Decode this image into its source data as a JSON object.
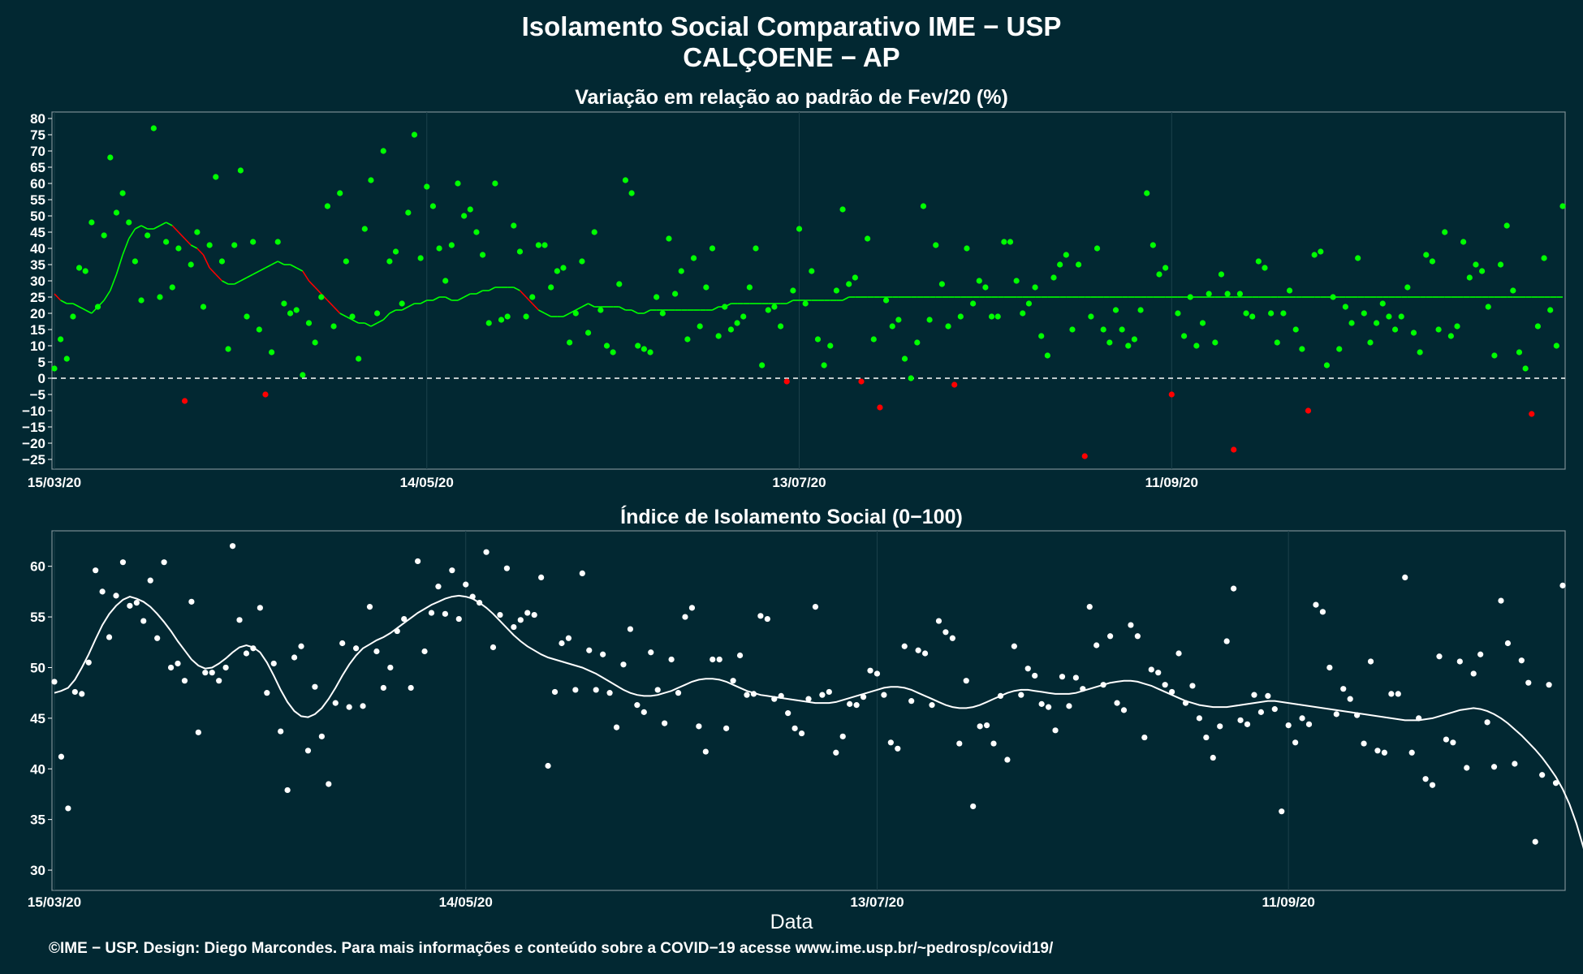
{
  "title": "Isolamento Social Comparativo IME − USP",
  "subtitle": "CALÇOENE − AP",
  "xlabel": "Data",
  "footer": "©IME − USP. Design: Diego Marcondes. Para mais informações e conteúdo sobre a COVID−19 acesse www.ime.usp.br/~pedrosp/covid19/",
  "colors": {
    "background": "#022832",
    "positive": "#00ff00",
    "negative": "#ff0000",
    "index": "#ffffff"
  },
  "chart_data": [
    {
      "type": "scatter",
      "title": "Variação em relação ao padrão de Fev/20 (%)",
      "x_start": "15/03/20",
      "x_ticks": [
        "15/03/20",
        "14/05/20",
        "13/07/20",
        "11/09/20"
      ],
      "tick_day_index": [
        0,
        60,
        120,
        180
      ],
      "ylim": [
        -28,
        82
      ],
      "yticks": [
        -25,
        -20,
        -15,
        -10,
        -5,
        0,
        5,
        10,
        15,
        20,
        25,
        30,
        35,
        40,
        45,
        50,
        55,
        60,
        65,
        70,
        75,
        80
      ],
      "reference_line": 0,
      "points": [
        3,
        12,
        6,
        19,
        34,
        33,
        48,
        22,
        44,
        68,
        51,
        57,
        48,
        36,
        24,
        44,
        77,
        25,
        42,
        28,
        40,
        -7,
        35,
        45,
        22,
        41,
        62,
        36,
        9,
        41,
        64,
        19,
        42,
        15,
        -5,
        8,
        42,
        23,
        20,
        21,
        1,
        17,
        11,
        25,
        53,
        16,
        57,
        36,
        19,
        6,
        46,
        61,
        20,
        70,
        36,
        39,
        23,
        51,
        75,
        37,
        59,
        53,
        40,
        30,
        41,
        60,
        50,
        52,
        45,
        38,
        17,
        60,
        18,
        19,
        47,
        39,
        19,
        25,
        41,
        41,
        28,
        33,
        34,
        11,
        20,
        36,
        14,
        45,
        21,
        10,
        8,
        29,
        61,
        57,
        10,
        9,
        8,
        25,
        20,
        43,
        26,
        33,
        12,
        37,
        16,
        28,
        40,
        13,
        22,
        15,
        17,
        19,
        28,
        40,
        4,
        21,
        22,
        16,
        -1,
        27,
        46,
        23,
        33,
        12,
        4,
        10,
        27,
        52,
        29,
        31,
        -1,
        43,
        12,
        -9,
        24,
        16,
        18,
        6,
        0,
        11,
        53,
        18,
        41,
        29,
        16,
        -2,
        19,
        40,
        23,
        30,
        28,
        19,
        19,
        42,
        42,
        30,
        20,
        23,
        28,
        13,
        7,
        31,
        35,
        38,
        15,
        35,
        -24,
        19,
        40,
        15,
        11,
        21,
        15,
        10,
        12,
        21,
        57,
        41,
        32,
        34,
        -5,
        20,
        13,
        25,
        10,
        17,
        26,
        11,
        32,
        26,
        -22,
        26,
        20,
        19,
        36,
        34,
        20,
        11,
        20,
        27,
        15,
        9,
        -10,
        38,
        39,
        4,
        25,
        9,
        22,
        17,
        37,
        20,
        11,
        17,
        23,
        19,
        15,
        19,
        28,
        14,
        8,
        38,
        36,
        15,
        45,
        13,
        16,
        42,
        31,
        35,
        33,
        22,
        7,
        35,
        47,
        27,
        8,
        3,
        -11,
        16,
        37,
        21,
        10,
        53
      ],
      "moving_average": [
        26,
        24,
        23,
        23,
        22,
        21,
        20,
        22,
        24,
        27,
        32,
        38,
        43,
        46,
        47,
        46,
        46,
        47,
        48,
        47,
        45,
        43,
        41,
        40,
        38,
        34,
        32,
        30,
        29,
        29,
        30,
        31,
        32,
        33,
        34,
        35,
        36,
        35,
        35,
        34,
        33,
        30,
        28,
        26,
        24,
        22,
        20,
        19,
        18,
        17,
        17,
        16,
        17,
        18,
        20,
        21,
        21,
        22,
        23,
        23,
        24,
        24,
        25,
        25,
        24,
        24,
        25,
        26,
        26,
        27,
        27,
        28,
        28,
        28,
        28,
        27,
        25,
        23,
        21,
        20,
        19,
        19,
        19,
        20,
        21,
        22,
        23,
        22,
        22,
        22,
        22,
        22,
        21,
        21,
        20,
        20,
        21,
        21,
        21,
        21,
        21,
        21,
        21,
        21,
        21,
        21,
        21,
        22,
        22,
        23,
        23,
        23,
        23,
        23,
        23,
        23,
        23,
        23,
        23,
        24,
        24,
        24,
        24,
        24,
        24,
        24,
        24,
        24,
        25,
        25,
        25,
        25,
        25,
        25,
        25,
        25,
        25,
        25,
        25,
        25,
        25,
        25,
        25,
        25,
        25,
        25,
        25,
        25,
        25,
        25,
        25,
        25,
        25,
        25,
        25,
        25,
        25,
        25,
        25,
        25,
        25,
        25,
        25,
        25,
        25,
        25,
        25,
        25,
        25,
        25,
        25,
        25,
        25,
        25,
        25,
        25,
        25,
        25,
        25,
        25,
        25,
        25,
        25,
        25,
        25,
        25,
        25,
        25,
        25,
        25,
        25,
        25,
        25,
        25,
        25,
        25,
        25,
        25,
        25,
        25,
        25,
        25,
        25,
        25,
        25,
        25,
        25,
        25,
        25,
        25,
        25,
        25,
        25,
        25,
        25,
        25,
        25,
        25,
        25,
        25,
        25,
        25,
        25,
        25,
        25,
        25,
        25,
        25,
        25,
        25,
        25,
        25,
        25,
        25,
        25,
        25,
        25,
        25,
        25,
        25,
        25,
        25,
        25,
        25
      ]
    },
    {
      "type": "scatter",
      "title": "Índice de Isolamento Social (0−100)",
      "x_start": "15/03/20",
      "x_ticks": [
        "15/03/20",
        "14/05/20",
        "13/07/20",
        "11/09/20"
      ],
      "tick_day_index": [
        0,
        60,
        120,
        180
      ],
      "ylim": [
        28,
        63.5
      ],
      "yticks": [
        30,
        35,
        40,
        45,
        50,
        55,
        60
      ],
      "points": [
        48.6,
        41.2,
        36.1,
        47.6,
        47.4,
        50.5,
        59.6,
        57.5,
        53.0,
        57.1,
        60.4,
        56.1,
        56.4,
        54.6,
        58.6,
        52.9,
        60.4,
        50.0,
        50.4,
        48.7,
        56.5,
        43.6,
        49.5,
        49.5,
        48.7,
        50.0,
        62.0,
        54.7,
        51.4,
        51.9,
        55.9,
        47.5,
        50.4,
        43.7,
        37.9,
        51.0,
        52.1,
        41.8,
        48.1,
        43.2,
        38.5,
        46.5,
        52.4,
        46.1,
        51.9,
        46.2,
        56.0,
        51.6,
        48.0,
        50.0,
        53.6,
        54.8,
        48.0,
        60.5,
        51.6,
        55.4,
        58.0,
        55.3,
        59.6,
        54.8,
        58.2,
        57.0,
        56.4,
        61.4,
        52.0,
        55.2,
        59.8,
        54.0,
        54.7,
        55.4,
        55.2,
        58.9,
        40.3,
        47.6,
        52.4,
        52.9,
        47.8,
        59.3,
        51.7,
        47.8,
        51.3,
        47.5,
        44.1,
        50.3,
        53.8,
        46.3,
        45.6,
        51.5,
        47.8,
        44.5,
        50.8,
        47.5,
        55.0,
        55.9,
        44.2,
        41.7,
        50.8,
        50.8,
        44.0,
        48.7,
        51.2,
        47.3,
        47.4,
        55.1,
        54.8,
        46.9,
        47.2,
        45.5,
        44.0,
        43.5,
        46.9,
        56.0,
        47.3,
        47.6,
        41.6,
        43.2,
        46.4,
        46.3,
        47.1,
        49.7,
        49.4,
        47.3,
        42.6,
        42.0,
        52.1,
        46.7,
        51.7,
        51.4,
        46.3,
        54.6,
        53.5,
        52.9,
        42.5,
        48.7,
        36.3,
        44.2,
        44.3,
        42.5,
        47.2,
        40.9,
        52.1,
        47.3,
        49.9,
        49.2,
        46.4,
        46.1,
        43.8,
        49.1,
        46.2,
        49.0,
        47.9,
        56.0,
        52.2,
        48.3,
        53.1,
        46.5,
        45.8,
        54.2,
        53.1,
        43.1,
        49.8,
        49.5,
        48.3,
        47.6,
        51.4,
        46.5,
        48.2,
        45.0,
        43.1,
        41.1,
        44.2,
        52.6,
        57.8,
        44.8,
        44.4,
        47.3,
        45.6,
        47.2,
        45.9,
        35.8,
        44.3,
        42.6,
        45.0,
        44.4,
        56.2,
        55.5,
        50.0,
        45.4,
        47.9,
        46.9,
        45.3,
        42.5,
        50.6,
        41.8,
        41.6,
        47.4,
        47.4,
        58.9,
        41.6,
        45.0,
        39.0,
        38.4,
        51.1,
        42.9,
        42.6,
        50.6,
        40.1,
        49.4,
        51.3,
        44.6,
        40.2,
        56.6,
        52.4,
        40.5,
        50.7,
        48.5,
        32.8,
        39.4,
        48.3,
        38.6,
        58.1
      ],
      "moving_average": [
        47.5,
        47.7,
        48.0,
        48.8,
        50.0,
        51.3,
        52.8,
        54.2,
        55.3,
        56.1,
        56.7,
        57.0,
        56.8,
        56.5,
        56.0,
        55.3,
        54.5,
        53.6,
        52.6,
        51.7,
        50.8,
        50.2,
        49.9,
        50.0,
        50.4,
        50.9,
        51.5,
        52.0,
        52.2,
        52.0,
        51.5,
        50.5,
        49.2,
        47.8,
        46.6,
        45.7,
        45.2,
        45.1,
        45.4,
        46.0,
        46.9,
        48.0,
        49.2,
        50.3,
        51.2,
        51.9,
        52.3,
        52.7,
        53.0,
        53.4,
        53.9,
        54.4,
        54.9,
        55.4,
        55.8,
        56.2,
        56.5,
        56.8,
        57.0,
        57.1,
        57.0,
        56.8,
        56.4,
        55.9,
        55.3,
        54.6,
        53.9,
        53.2,
        52.6,
        52.1,
        51.7,
        51.3,
        51.0,
        50.8,
        50.6,
        50.4,
        50.2,
        50.0,
        49.7,
        49.4,
        49.0,
        48.6,
        48.2,
        47.8,
        47.5,
        47.3,
        47.2,
        47.2,
        47.3,
        47.5,
        47.7,
        48.0,
        48.3,
        48.6,
        48.8,
        48.9,
        48.9,
        48.8,
        48.6,
        48.3,
        48.0,
        47.7,
        47.5,
        47.3,
        47.2,
        47.1,
        47.0,
        46.9,
        46.8,
        46.7,
        46.6,
        46.5,
        46.5,
        46.5,
        46.6,
        46.8,
        47.0,
        47.2,
        47.4,
        47.6,
        47.8,
        48.0,
        48.1,
        48.1,
        48.0,
        47.8,
        47.5,
        47.2,
        46.9,
        46.6,
        46.3,
        46.1,
        46.0,
        46.0,
        46.1,
        46.3,
        46.6,
        46.9,
        47.2,
        47.5,
        47.7,
        47.8,
        47.8,
        47.7,
        47.6,
        47.5,
        47.4,
        47.4,
        47.4,
        47.5,
        47.7,
        47.9,
        48.1,
        48.3,
        48.5,
        48.6,
        48.7,
        48.7,
        48.6,
        48.4,
        48.2,
        47.9,
        47.6,
        47.3,
        47.0,
        46.7,
        46.5,
        46.3,
        46.2,
        46.1,
        46.1,
        46.1,
        46.2,
        46.3,
        46.4,
        46.5,
        46.6,
        46.7,
        46.7,
        46.6,
        46.5,
        46.4,
        46.3,
        46.2,
        46.1,
        46.0,
        45.9,
        45.8,
        45.7,
        45.6,
        45.5,
        45.4,
        45.3,
        45.2,
        45.1,
        45.0,
        44.9,
        44.8,
        44.8,
        44.8,
        44.9,
        45.0,
        45.2,
        45.4,
        45.6,
        45.8,
        45.9,
        46.0,
        45.9,
        45.7,
        45.4,
        45.0,
        44.5,
        43.9,
        43.3,
        42.6,
        41.9,
        41.1,
        40.2,
        39.2,
        38.0,
        36.5,
        34.6,
        32.3,
        29.5
      ]
    }
  ]
}
